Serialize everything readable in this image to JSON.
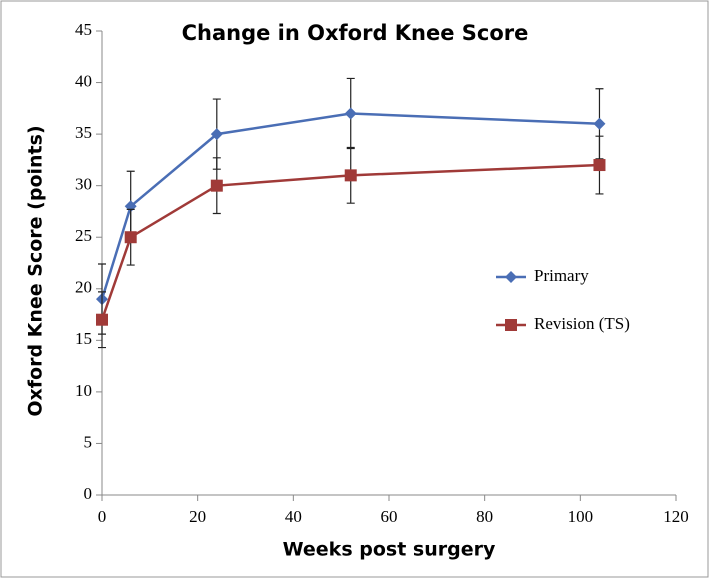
{
  "chart_data": {
    "type": "line",
    "title": "Change in Oxford Knee Score",
    "x_label": "Weeks post surgery",
    "y_label": "Oxford Knee Score (points)",
    "x": [
      0,
      6,
      24,
      52,
      104
    ],
    "series": [
      {
        "name": "Primary",
        "color": "#4a6eb5",
        "marker": "diamond",
        "values": [
          19,
          28,
          35,
          37,
          36
        ],
        "errors": [
          3.4,
          3.4,
          3.4,
          3.4,
          3.4
        ]
      },
      {
        "name": "Revision (TS)",
        "color": "#a03a38",
        "marker": "square",
        "values": [
          17,
          25,
          30,
          31,
          32
        ],
        "errors": [
          2.7,
          2.7,
          2.7,
          2.7,
          2.8
        ]
      }
    ],
    "xlim": [
      0,
      120
    ],
    "xticks": [
      0,
      20,
      40,
      60,
      80,
      100,
      120
    ],
    "ylim": [
      0,
      45
    ],
    "yticks": [
      0,
      5,
      10,
      15,
      20,
      25,
      30,
      35,
      40,
      45
    ],
    "grid": false,
    "legend": "right"
  }
}
